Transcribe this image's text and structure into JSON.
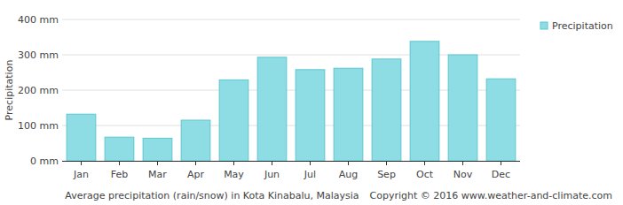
{
  "chart_data": {
    "type": "bar",
    "title": "Average precipitation (rain/snow) in Kota Kinabalu, Malaysia",
    "annotations": [
      "Copyright © 2016 www.weather-and-climate.com"
    ],
    "y_label": "Precipitation",
    "categories": [
      "Jan",
      "Feb",
      "Mar",
      "Apr",
      "May",
      "Jun",
      "Jul",
      "Aug",
      "Sep",
      "Oct",
      "Nov",
      "Dec"
    ],
    "series": [
      {
        "name": "Precipitation",
        "color": "#8fdde4",
        "values": [
          132,
          67,
          64,
          115,
          229,
          293,
          258,
          262,
          288,
          338,
          300,
          232
        ]
      }
    ],
    "ylim": [
      0,
      400
    ],
    "yticks": [
      {
        "value": 0,
        "label": "0 mm"
      },
      {
        "value": 100,
        "label": "100 mm"
      },
      {
        "value": 200,
        "label": "200 mm"
      },
      {
        "value": 300,
        "label": "300 mm"
      },
      {
        "value": 400,
        "label": "400 mm"
      }
    ],
    "grid": true,
    "legend": "top-right"
  }
}
